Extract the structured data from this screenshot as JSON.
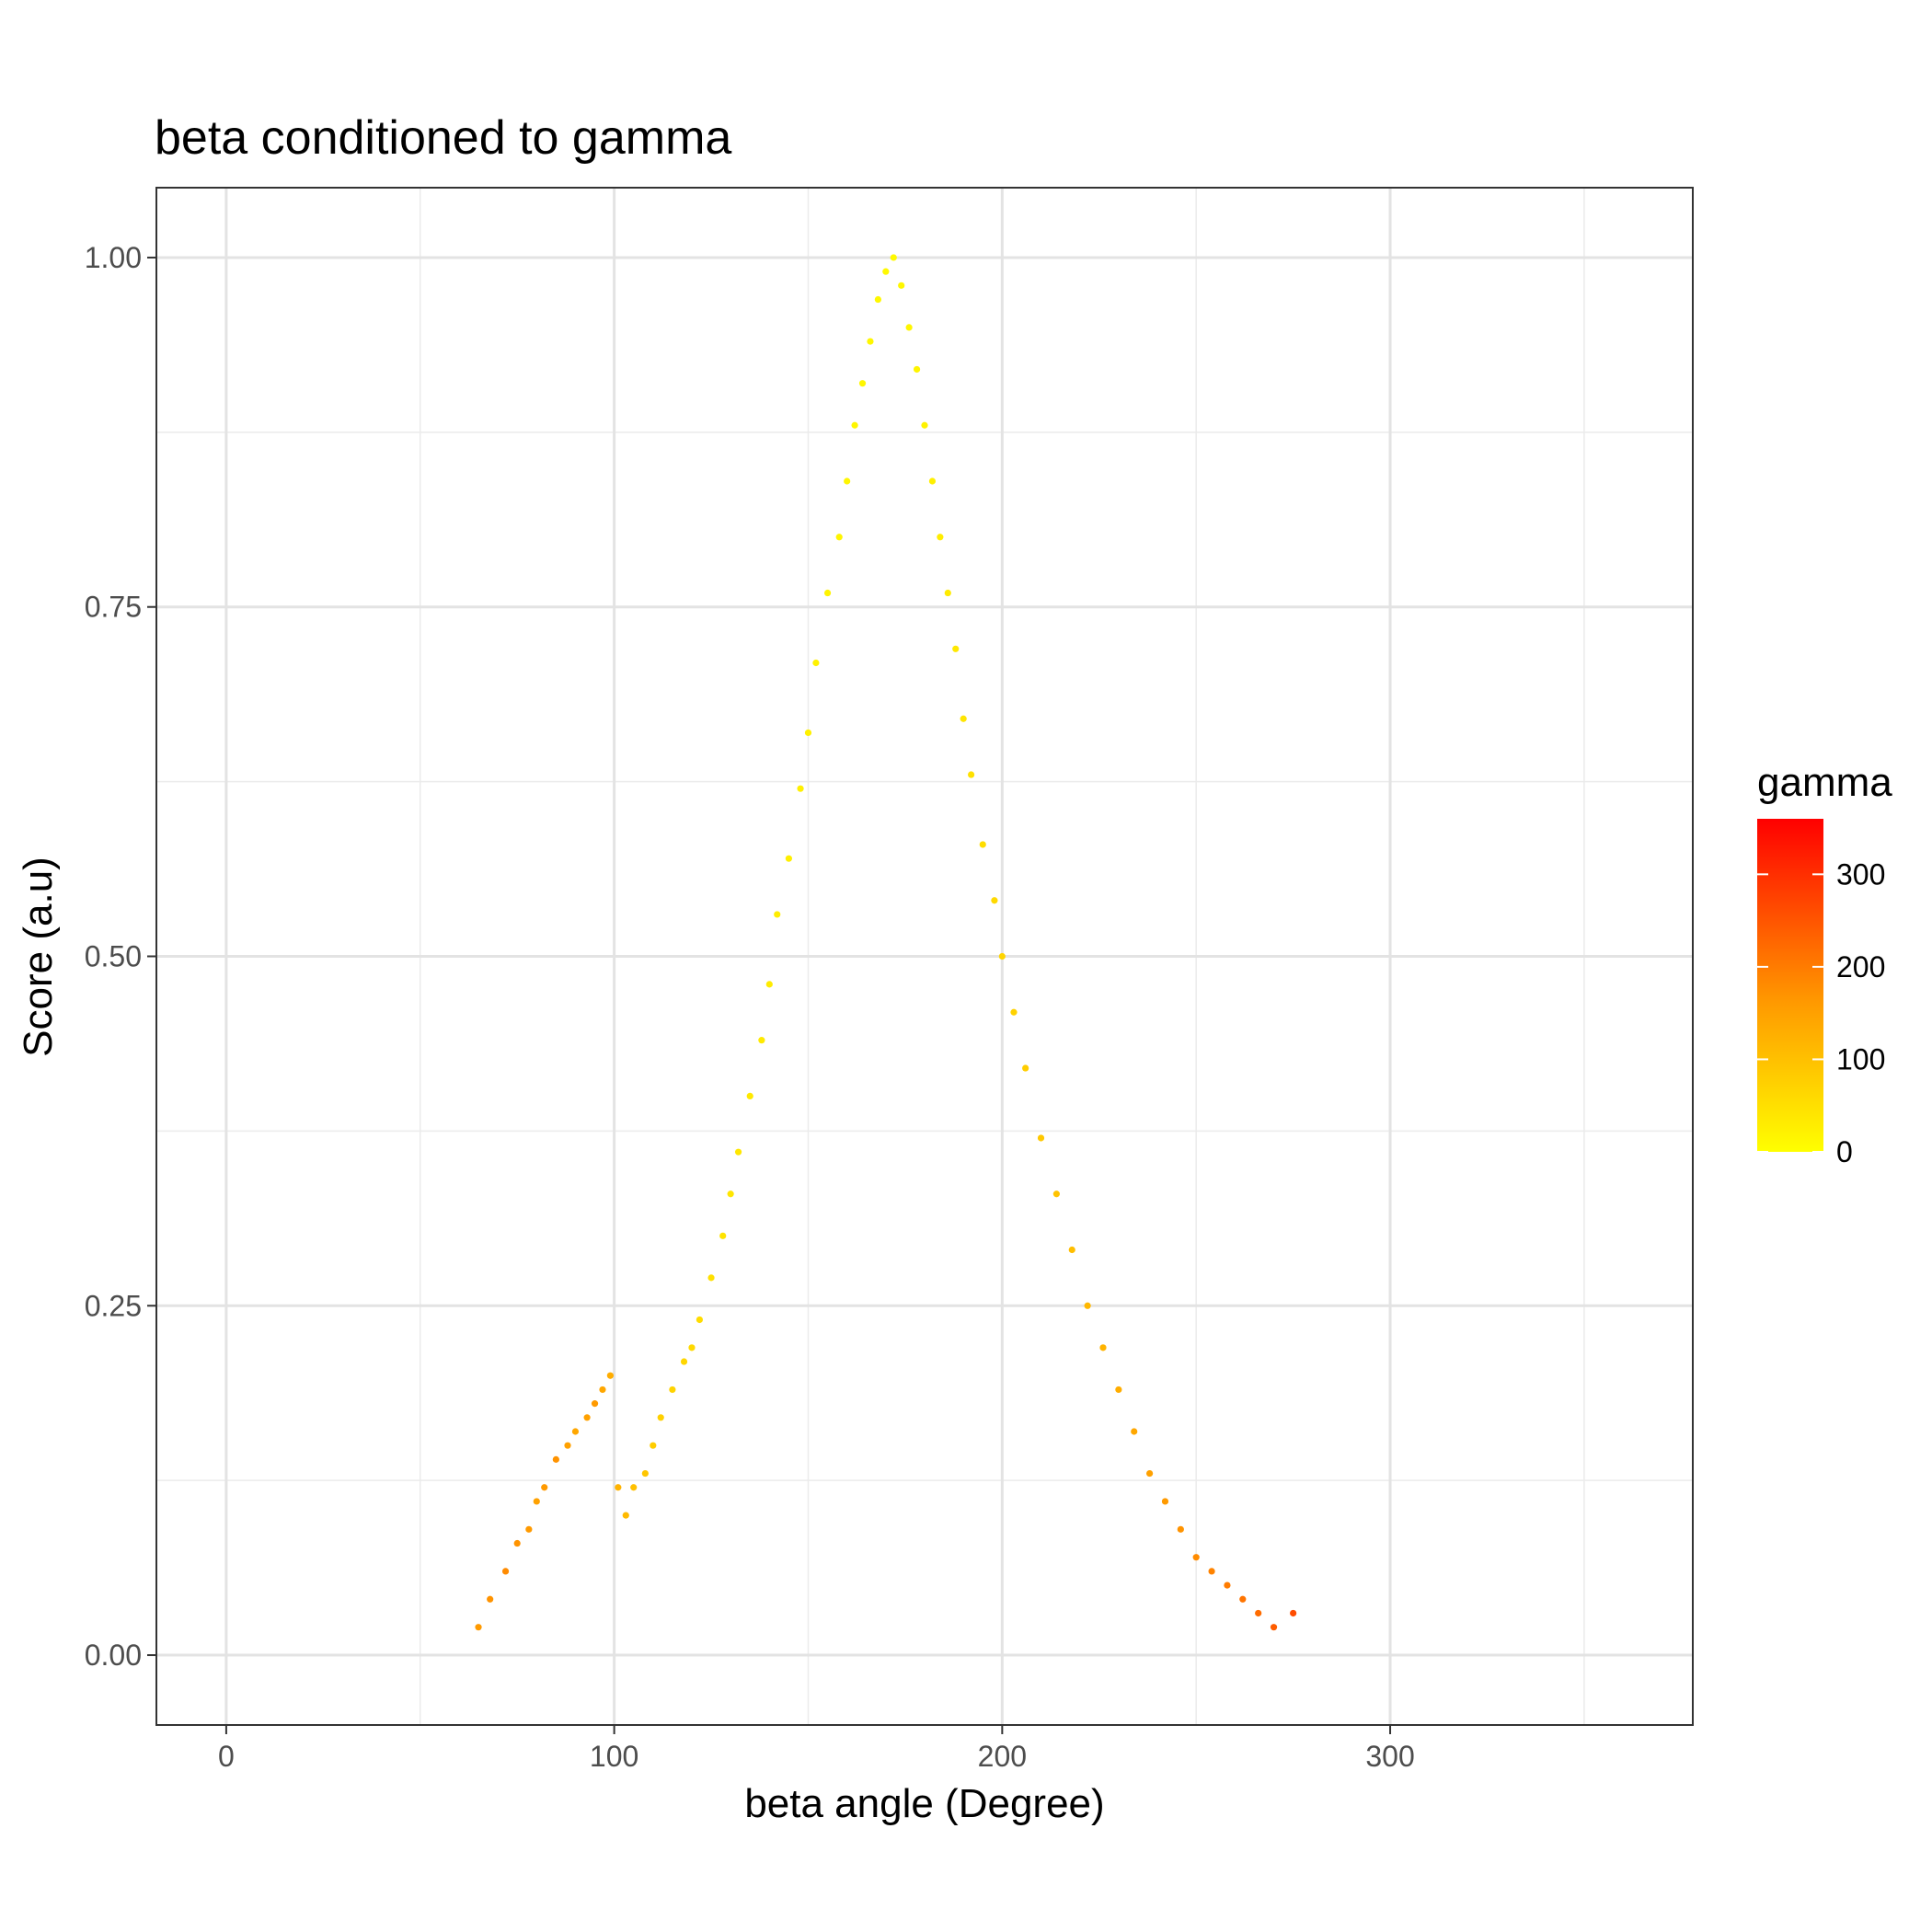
{
  "chart_data": {
    "type": "scatter",
    "title": "beta conditioned to gamma",
    "xlabel": "beta angle (Degree)",
    "ylabel": "Score (a.u)",
    "xlim": [
      -18,
      378
    ],
    "ylim": [
      -0.05,
      1.05
    ],
    "x_ticks": [
      0,
      100,
      200,
      300
    ],
    "x_tick_labels": [
      "0",
      "100",
      "200",
      "300"
    ],
    "x_minor_ticks": [
      50,
      150,
      250,
      350
    ],
    "y_ticks": [
      0,
      0.25,
      0.5,
      0.75,
      1.0
    ],
    "y_tick_labels": [
      "0.00",
      "0.25",
      "0.50",
      "0.75",
      "1.00"
    ],
    "y_minor_ticks": [
      0.125,
      0.375,
      0.625,
      0.875
    ],
    "grid": true,
    "legend": {
      "title": "gamma",
      "position": "right",
      "type": "colorbar",
      "range": [
        0,
        360
      ],
      "ticks": [
        0,
        100,
        200,
        300
      ],
      "tick_labels": [
        "0",
        "100",
        "200",
        "300"
      ],
      "low_color": "#ffff00",
      "mid_color": "#ff9900",
      "high_color": "#ff0000"
    },
    "color_variable": "gamma",
    "point_color_low": "#ffff00",
    "point_color_high": "#ff0000",
    "peak": {
      "x": 172,
      "y": 1.0
    },
    "series": [
      {
        "x": [
          65,
          68,
          72,
          75,
          78,
          80,
          82,
          85,
          88,
          90,
          93,
          95,
          97,
          99,
          101,
          103,
          105,
          108,
          110,
          112,
          115,
          118,
          120,
          122,
          125,
          128,
          130,
          132,
          135,
          138,
          140,
          142,
          145,
          148,
          150,
          152,
          155,
          158,
          160,
          162,
          164,
          166,
          168,
          170,
          172,
          174,
          176,
          178,
          180,
          182,
          184,
          186,
          188,
          190,
          192,
          195,
          198,
          200,
          203,
          206,
          210,
          214,
          218,
          222,
          226,
          230,
          234,
          238,
          242,
          246,
          250,
          254,
          258,
          262,
          266,
          270,
          275
        ],
        "y": [
          0.02,
          0.04,
          0.06,
          0.08,
          0.09,
          0.11,
          0.12,
          0.14,
          0.15,
          0.16,
          0.17,
          0.18,
          0.19,
          0.2,
          0.12,
          0.1,
          0.12,
          0.13,
          0.15,
          0.17,
          0.19,
          0.21,
          0.22,
          0.24,
          0.27,
          0.3,
          0.33,
          0.36,
          0.4,
          0.44,
          0.48,
          0.53,
          0.57,
          0.62,
          0.66,
          0.71,
          0.76,
          0.8,
          0.84,
          0.88,
          0.91,
          0.94,
          0.97,
          0.99,
          1.0,
          0.98,
          0.95,
          0.92,
          0.88,
          0.84,
          0.8,
          0.76,
          0.72,
          0.67,
          0.63,
          0.58,
          0.54,
          0.5,
          0.46,
          0.42,
          0.37,
          0.33,
          0.29,
          0.25,
          0.22,
          0.19,
          0.16,
          0.13,
          0.11,
          0.09,
          0.07,
          0.06,
          0.05,
          0.04,
          0.03,
          0.02,
          0.03
        ],
        "gamma": [
          160,
          170,
          180,
          170,
          160,
          150,
          160,
          170,
          150,
          140,
          150,
          160,
          140,
          130,
          120,
          110,
          100,
          90,
          80,
          75,
          70,
          65,
          60,
          55,
          50,
          45,
          40,
          38,
          35,
          33,
          30,
          28,
          26,
          24,
          22,
          20,
          18,
          16,
          15,
          14,
          13,
          12,
          11,
          10,
          10,
          12,
          14,
          16,
          20,
          24,
          28,
          32,
          36,
          42,
          48,
          54,
          60,
          66,
          72,
          80,
          88,
          96,
          104,
          112,
          120,
          130,
          140,
          150,
          160,
          170,
          180,
          190,
          200,
          210,
          220,
          240,
          260
        ]
      }
    ]
  }
}
